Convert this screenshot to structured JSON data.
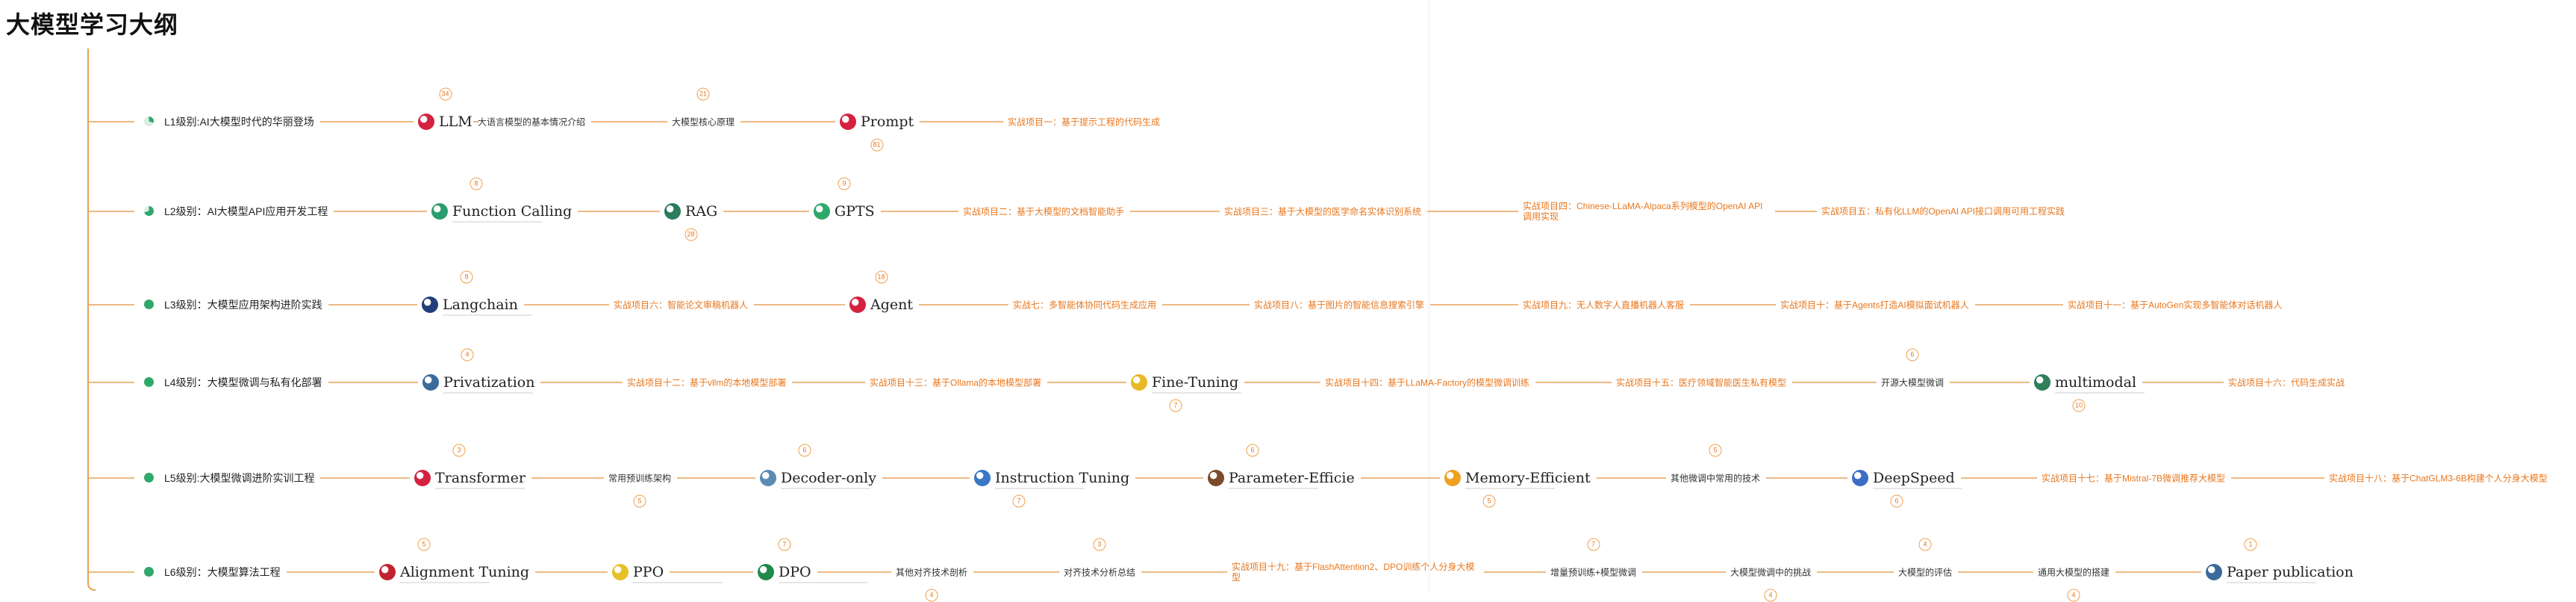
{
  "title": "大模型学习大纲",
  "colors": {
    "line": "#e8a25a",
    "project_text": "#e8771e",
    "badge": "#f0a050"
  },
  "rows": [
    {
      "level": "L1级别:AI大模型时代的华丽登场",
      "nodes": [
        {
          "kind": "logo",
          "name": "LLM",
          "icon": "llm-icon",
          "badge": "34"
        },
        {
          "kind": "plain",
          "text": "大语言模型的基本情况介绍"
        },
        {
          "kind": "plain",
          "text": "大模型核心原理",
          "badge": "21"
        },
        {
          "kind": "logo",
          "name": "Prompt",
          "icon": "prompt-icon",
          "badge": "81"
        },
        {
          "kind": "project",
          "text": "实战项目一：基于提示工程的代码生成"
        }
      ]
    },
    {
      "level": "L2级别：AI大模型API应用开发工程",
      "nodes": [
        {
          "kind": "logo",
          "name": "Function Calling",
          "icon": "function-calling-icon",
          "badge": "8"
        },
        {
          "kind": "logo",
          "name": "RAG",
          "icon": "rag-icon",
          "badge": "28"
        },
        {
          "kind": "logo",
          "name": "GPTS",
          "icon": "gpts-icon",
          "badge": "9"
        },
        {
          "kind": "project",
          "text": "实战项目二：基于大模型的文档智能助手"
        },
        {
          "kind": "project",
          "text": "实战项目三：基于大模型的医学命名实体识别系统"
        },
        {
          "kind": "project",
          "text": "实战项目四：Chinese-LLaMA-Alpaca系列模型的OpenAI API调用实现"
        },
        {
          "kind": "project",
          "text": "实战项目五：私有化LLM的OpenAI API接口调用可用工程实践"
        }
      ]
    },
    {
      "level": "L3级别：大模型应用架构进阶实践",
      "nodes": [
        {
          "kind": "logo",
          "name": "Langchain",
          "icon": "langchain-icon",
          "badge": "8"
        },
        {
          "kind": "project",
          "text": "实战项目六：智能论文审稿机器人"
        },
        {
          "kind": "logo",
          "name": "Agent",
          "icon": "agent-icon",
          "badge": "18"
        },
        {
          "kind": "project",
          "text": "实战七：多智能体协同代码生成应用"
        },
        {
          "kind": "project",
          "text": "实战项目八：基于图片的智能信息搜索引擎"
        },
        {
          "kind": "project",
          "text": "实战项目九：无人数字人直播机器人客服"
        },
        {
          "kind": "project",
          "text": "实战项目十：基于Agents打造AI模拟面试机器人"
        },
        {
          "kind": "project",
          "text": "实战项目十一：基于AutoGen实现多智能体对话机器人"
        }
      ]
    },
    {
      "level": "L4级别：大模型微调与私有化部署",
      "nodes": [
        {
          "kind": "logo",
          "name": "Privatization",
          "icon": "privatization-icon",
          "badge": "4"
        },
        {
          "kind": "project",
          "text": "实战项目十二：基于vllm的本地模型部署"
        },
        {
          "kind": "project",
          "text": "实战项目十三：基于Ollama的本地模型部署"
        },
        {
          "kind": "logo",
          "name": "Fine-Tuning",
          "icon": "fine-tuning-icon",
          "badge": "7"
        },
        {
          "kind": "project",
          "text": "实战项目十四：基于LLaMA-Factory的模型微调训练"
        },
        {
          "kind": "project",
          "text": "实战项目十五：医疗领域智能医生私有模型"
        },
        {
          "kind": "plain",
          "text": "开源大模型微调",
          "badge": "6"
        },
        {
          "kind": "logo",
          "name": "multimodal",
          "icon": "multimodal-icon",
          "badge": "10"
        },
        {
          "kind": "project",
          "text": "实战项目十六：代码生成实战"
        }
      ]
    },
    {
      "level": "L5级别:大模型微调进阶实训工程",
      "nodes": [
        {
          "kind": "logo",
          "name": "Transformer",
          "icon": "transformer-icon",
          "badge": "3"
        },
        {
          "kind": "plain",
          "text": "常用预训练架构",
          "badge": "5"
        },
        {
          "kind": "logo",
          "name": "Decoder-only",
          "icon": "decoder-icon",
          "badge": "6"
        },
        {
          "kind": "logo",
          "name": "Instruction Tuning",
          "icon": "instruction-tuning-icon",
          "badge": "7"
        },
        {
          "kind": "logo",
          "name": "Parameter-Efficie",
          "icon": "parameter-efficient-icon",
          "badge": "6"
        },
        {
          "kind": "logo",
          "name": "Memory-Efficient",
          "icon": "memory-efficient-icon",
          "badge": "5"
        },
        {
          "kind": "plain",
          "text": "其他微调中常用的技术",
          "badge": "5"
        },
        {
          "kind": "logo",
          "name": "DeepSpeed",
          "icon": "deepspeed-icon",
          "badge": "6"
        },
        {
          "kind": "project",
          "text": "实战项目十七：基于Mistral-7B微调推荐大模型"
        },
        {
          "kind": "project",
          "text": "实战项目十八：基于ChatGLM3-6B构建个人分身大模型"
        }
      ]
    },
    {
      "level": "L6级别：大模型算法工程",
      "nodes": [
        {
          "kind": "logo",
          "name": "Alignment Tuning",
          "icon": "alignment-tuning-icon",
          "badge": "5"
        },
        {
          "kind": "logo",
          "name": "PPO",
          "icon": "ppo-icon"
        },
        {
          "kind": "logo",
          "name": "DPO",
          "icon": "dpo-icon",
          "badge": "7"
        },
        {
          "kind": "plain",
          "text": "其他对齐技术剖析",
          "badge": "4"
        },
        {
          "kind": "plain",
          "text": "对齐技术分析总结",
          "badge": "3"
        },
        {
          "kind": "project",
          "text": "实战项目十九：基于FlashAttention2、DPO训练个人分身大模型"
        },
        {
          "kind": "plain",
          "text": "增量预训练+模型微调",
          "badge": "7"
        },
        {
          "kind": "plain",
          "text": "大模型微调中的挑战",
          "badge": "4"
        },
        {
          "kind": "plain",
          "text": "大模型的评估",
          "badge": "4"
        },
        {
          "kind": "plain",
          "text": "通用大模型的搭建",
          "badge": "4"
        },
        {
          "kind": "logo",
          "name": "Paper publication",
          "icon": "paper-publication-icon",
          "badge": "1"
        }
      ]
    }
  ]
}
